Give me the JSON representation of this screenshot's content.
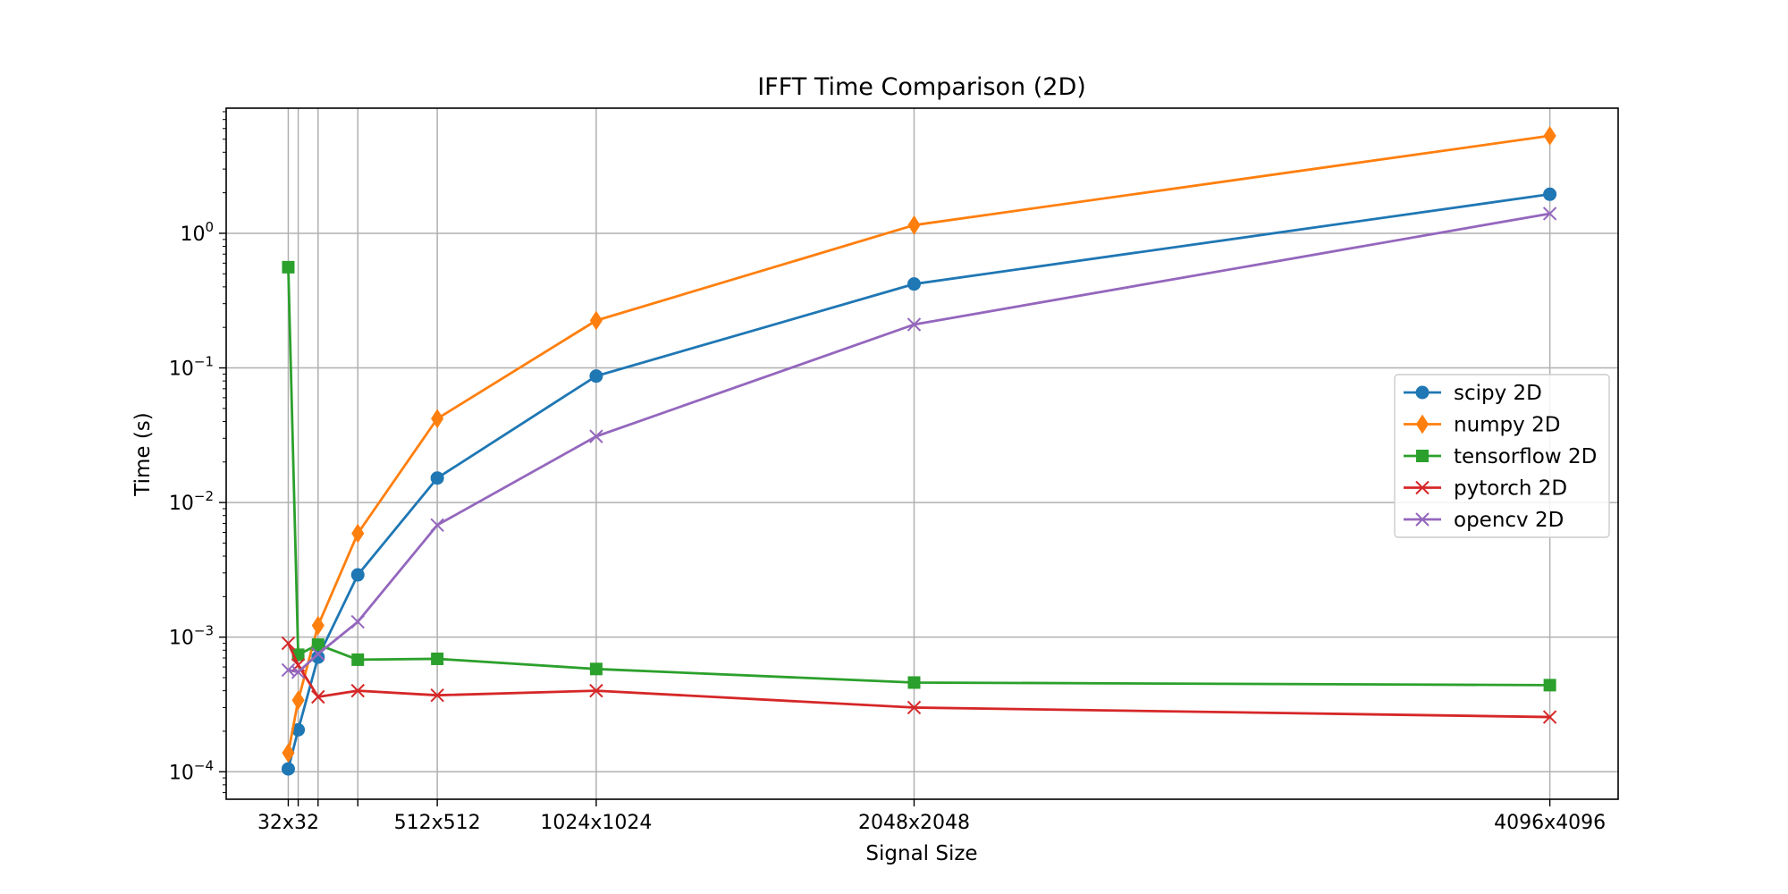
{
  "chart_data": {
    "type": "line",
    "title": "IFFT Time Comparison (2D)",
    "xlabel": "Signal Size",
    "ylabel": "Time (s)",
    "x_scale": "linear",
    "y_scale": "log",
    "x": [
      32,
      64,
      128,
      256,
      512,
      1024,
      2048,
      4096
    ],
    "xlim": [
      -168,
      4316
    ],
    "ylim": [
      6.25e-05,
      8.5
    ],
    "x_ticks": [
      {
        "value": 32,
        "label": "32x32"
      },
      {
        "value": 64,
        "label": ""
      },
      {
        "value": 128,
        "label": ""
      },
      {
        "value": 256,
        "label": ""
      },
      {
        "value": 512,
        "label": "512x512"
      },
      {
        "value": 1024,
        "label": "1024x1024"
      },
      {
        "value": 2048,
        "label": "2048x2048"
      },
      {
        "value": 4096,
        "label": "4096x4096"
      }
    ],
    "y_ticks": [
      {
        "value": 0.0001,
        "base": "10",
        "exp": "−4"
      },
      {
        "value": 0.001,
        "base": "10",
        "exp": "−3"
      },
      {
        "value": 0.01,
        "base": "10",
        "exp": "−2"
      },
      {
        "value": 0.1,
        "base": "10",
        "exp": "−1"
      },
      {
        "value": 1,
        "base": "10",
        "exp": "0"
      }
    ],
    "grid": true,
    "legend_position": "center-right",
    "series": [
      {
        "name": "scipy 2D",
        "color": "#1f77b4",
        "marker": "circle",
        "values": [
          0.000105,
          0.000205,
          0.00071,
          0.0029,
          0.0152,
          0.087,
          0.42,
          1.95
        ]
      },
      {
        "name": "numpy 2D",
        "color": "#ff7f0e",
        "marker": "diamond",
        "values": [
          0.000138,
          0.00034,
          0.00122,
          0.0059,
          0.042,
          0.225,
          1.15,
          5.3
        ]
      },
      {
        "name": "tensorflow 2D",
        "color": "#2ca02c",
        "marker": "square",
        "values": [
          0.56,
          0.00074,
          0.00088,
          0.00068,
          0.00069,
          0.00058,
          0.00046,
          0.00044
        ]
      },
      {
        "name": "pytorch 2D",
        "color": "#d62728",
        "marker": "x",
        "values": [
          0.0009,
          0.00062,
          0.00036,
          0.0004,
          0.00037,
          0.0004,
          0.0003,
          0.000255
        ]
      },
      {
        "name": "opencv 2D",
        "color": "#9467bd",
        "marker": "x",
        "values": [
          0.00057,
          0.00055,
          0.00075,
          0.0013,
          0.0068,
          0.031,
          0.21,
          1.4
        ]
      }
    ]
  }
}
